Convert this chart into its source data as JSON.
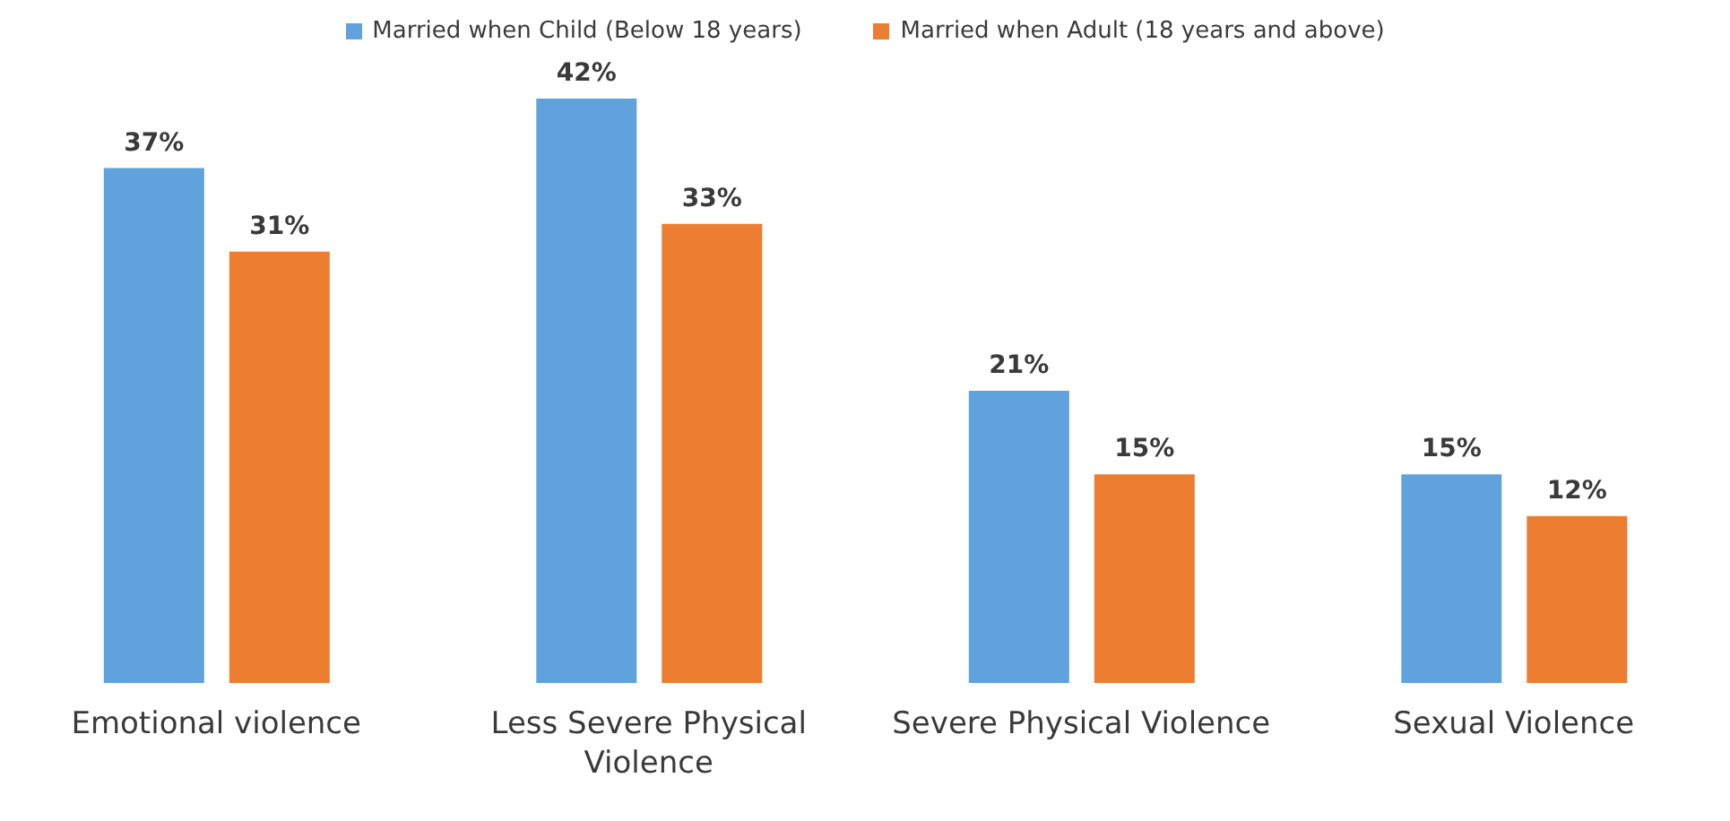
{
  "chart_data": {
    "type": "bar",
    "categories": [
      "Emotional violence",
      "Less Severe Physical Violence",
      "Severe Physical Violence",
      "Sexual Violence"
    ],
    "series": [
      {
        "name": "Married when Child (Below 18 years)",
        "color": "#5fa2dc",
        "values": [
          37,
          42,
          21,
          15
        ],
        "value_labels": [
          "37%",
          "42%",
          "21%",
          "15%"
        ]
      },
      {
        "name": "Married when Adult (18 years and above)",
        "color": "#ed7d31",
        "values": [
          31,
          33,
          15,
          12
        ],
        "value_labels": [
          "31%",
          "33%",
          "15%",
          "12%"
        ]
      }
    ],
    "legend": "top",
    "grid": false
  }
}
